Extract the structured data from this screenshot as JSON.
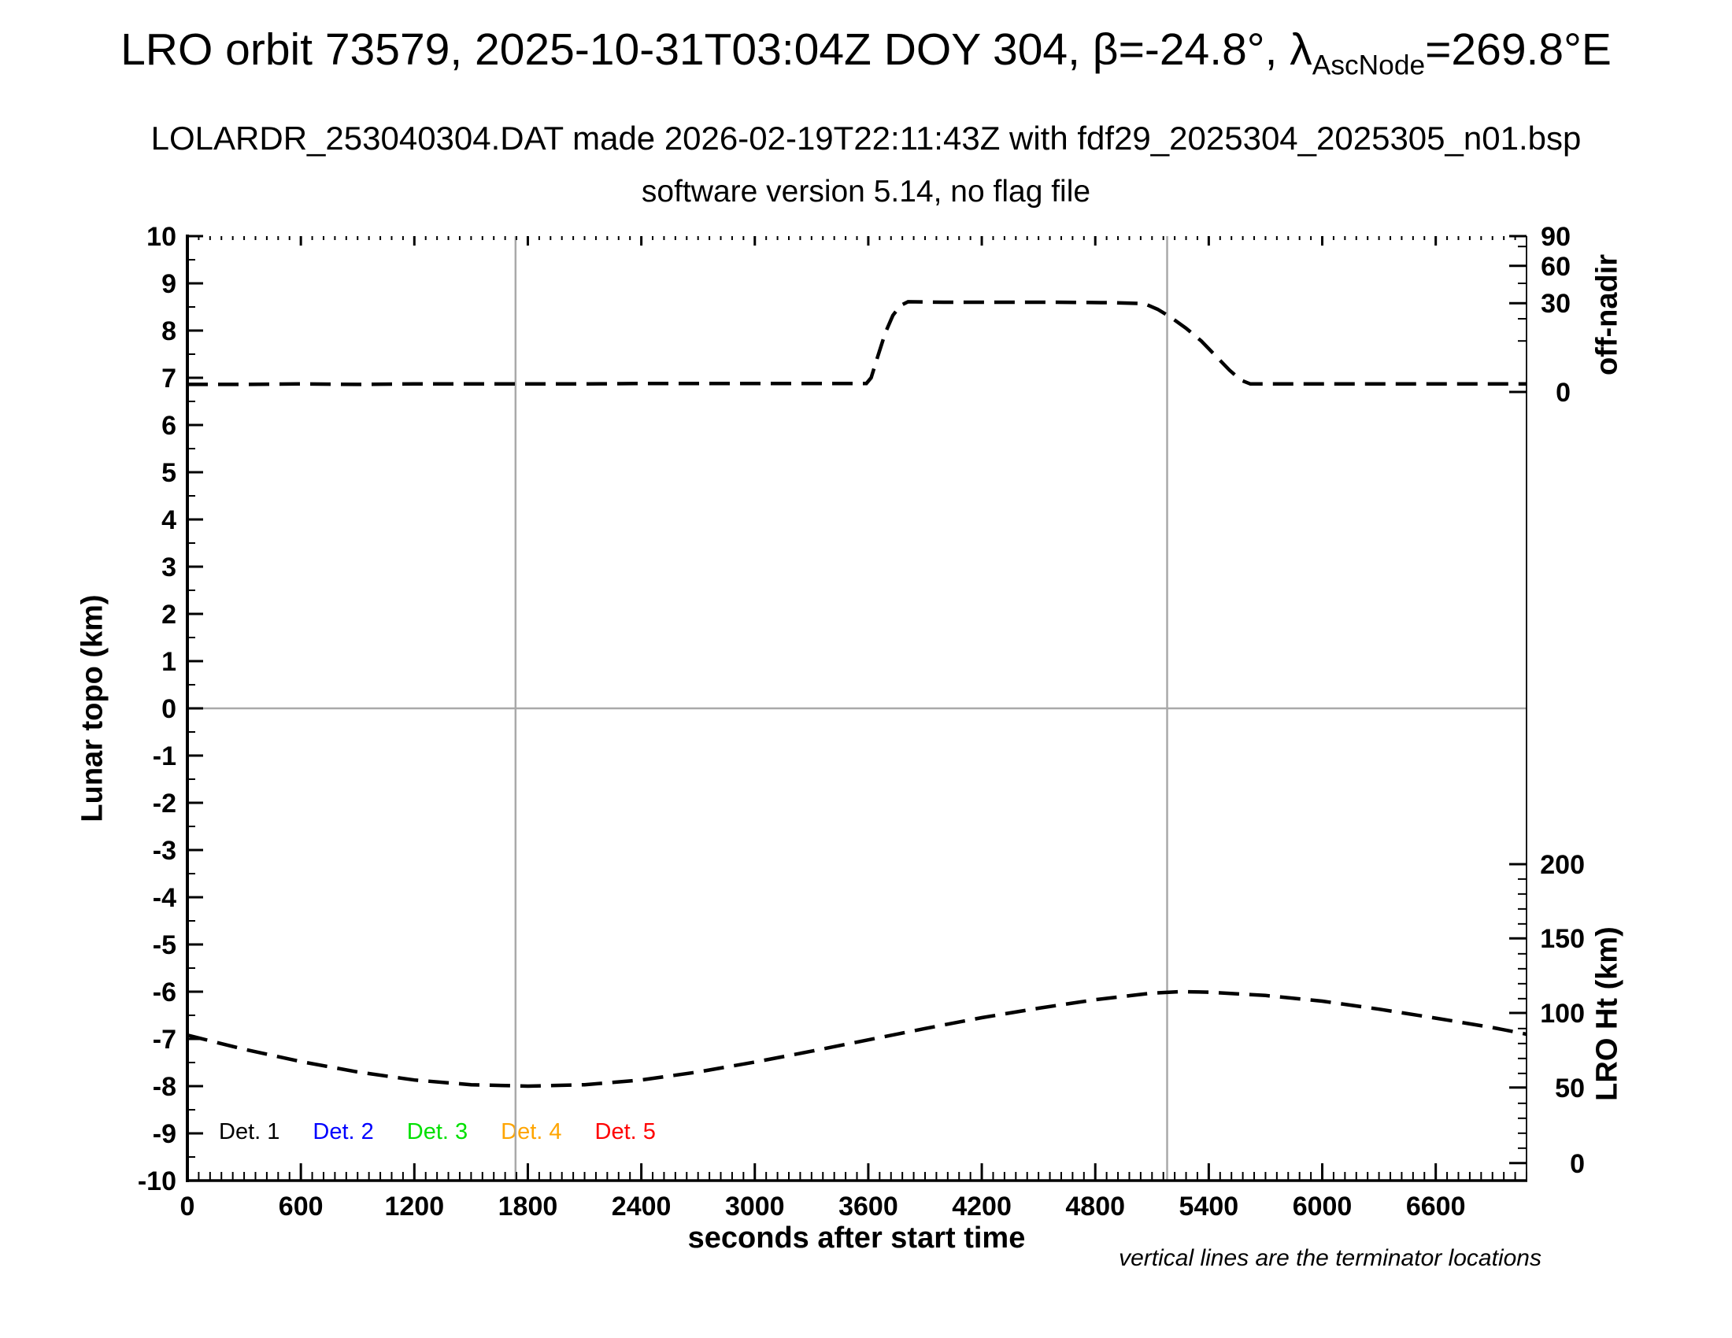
{
  "header": {
    "title_main": "LRO orbit 73579, 2025-10-31T03:04Z DOY 304, β=-24.8°, λ",
    "title_subscript": "AscNode",
    "title_suffix": "=269.8°E",
    "subtitle1": "LOLARDR_253040304.DAT made 2026-02-19T22:11:43Z with fdf29_2025304_2025305_n01.bsp",
    "subtitle2": "software version 5.14, no flag file"
  },
  "chart_data": {
    "type": "line",
    "title": "LRO orbit 73579, 2025-10-31T03:04Z DOY 304, β=-24.8°, λ_AscNode=269.8°E",
    "x_axis": {
      "label": "seconds after start time",
      "range": [
        0,
        7080
      ],
      "major_tick_step": 600,
      "minor_tick_step": 60,
      "tick_labels": [
        0,
        600,
        1200,
        1800,
        2400,
        3000,
        3600,
        4200,
        4800,
        5400,
        6000,
        6600
      ]
    },
    "y_axis_left": {
      "label": "Lunar topo (km)",
      "range": [
        -10,
        10
      ],
      "major_tick_step": 1,
      "minor_tick_step": 0.5,
      "tick_labels": [
        10,
        9,
        8,
        7,
        6,
        5,
        4,
        3,
        2,
        1,
        0,
        -1,
        -2,
        -3,
        -4,
        -5,
        -6,
        -7,
        -8,
        -9,
        -10
      ]
    },
    "y_axis_right_offnadir": {
      "label": "off-nadir",
      "ticks": [
        {
          "label": "90",
          "topo_pos": 10.0
        },
        {
          "label": "60",
          "topo_pos": 9.37
        },
        {
          "label": "30",
          "topo_pos": 8.58
        },
        {
          "label": "0",
          "topo_pos": 6.7
        }
      ],
      "minor_topo_pos": [
        9.78,
        9.0,
        8.25,
        7.78
      ]
    },
    "y_axis_right_lro_ht": {
      "label": "LRO Ht (km)",
      "ticks": [
        {
          "label": "200",
          "topo_pos": -3.3
        },
        {
          "label": "150",
          "topo_pos": -4.87
        },
        {
          "label": "100",
          "topo_pos": -6.45
        },
        {
          "label": "50",
          "topo_pos": -8.03
        },
        {
          "label": "0",
          "topo_pos": -9.63
        }
      ],
      "minor_km_step": 10,
      "km_range": [
        0,
        200
      ],
      "topo_per_km": 0.03166
    },
    "grid": {
      "h_line_at_topo": 0,
      "v_lines_at_seconds": [
        1735,
        5180
      ]
    },
    "footnote": "vertical lines are the terminator locations",
    "legend": [
      {
        "label": "Det. 1",
        "color": "#000000"
      },
      {
        "label": "Det. 2",
        "color": "#0000ff"
      },
      {
        "label": "Det. 3",
        "color": "#00e000"
      },
      {
        "label": "Det. 4",
        "color": "#ffa500"
      },
      {
        "label": "Det. 5",
        "color": "#ff0000"
      }
    ],
    "series": [
      {
        "name": "off-nadir angle (all detectors overlaid)",
        "color": "#000000",
        "style": "dashed",
        "y_units": "plotted against left axis; off-nadir 0° ≈ 6.7, 30° ≈ 8.58 on topo scale",
        "note": "baseline ≈2° off-nadir; slew to ≈30° between t≈3600 s and t≈5620 s",
        "points": [
          [
            0,
            6.86
          ],
          [
            300,
            6.86
          ],
          [
            600,
            6.87
          ],
          [
            900,
            6.86
          ],
          [
            1200,
            6.87
          ],
          [
            1500,
            6.87
          ],
          [
            1800,
            6.87
          ],
          [
            2100,
            6.87
          ],
          [
            2400,
            6.88
          ],
          [
            2700,
            6.88
          ],
          [
            3000,
            6.88
          ],
          [
            3300,
            6.88
          ],
          [
            3590,
            6.88
          ],
          [
            3615,
            7.0
          ],
          [
            3650,
            7.45
          ],
          [
            3690,
            7.95
          ],
          [
            3730,
            8.32
          ],
          [
            3770,
            8.53
          ],
          [
            3810,
            8.61
          ],
          [
            4000,
            8.6
          ],
          [
            4300,
            8.6
          ],
          [
            4600,
            8.6
          ],
          [
            4900,
            8.59
          ],
          [
            5060,
            8.57
          ],
          [
            5130,
            8.45
          ],
          [
            5200,
            8.28
          ],
          [
            5280,
            8.05
          ],
          [
            5360,
            7.78
          ],
          [
            5440,
            7.45
          ],
          [
            5510,
            7.16
          ],
          [
            5570,
            6.95
          ],
          [
            5620,
            6.87
          ],
          [
            5900,
            6.87
          ],
          [
            6200,
            6.87
          ],
          [
            6500,
            6.87
          ],
          [
            6800,
            6.87
          ],
          [
            7080,
            6.87
          ]
        ]
      },
      {
        "name": "LRO height",
        "color": "#000000",
        "style": "dashed",
        "y_units": "plotted against left axis; LRO Ht 0 km ≈ -9.63, 50 km ≈ -8.03 on topo scale",
        "note": "≈85 km at t=0, min ≈51 km at t≈1800 s, max ≈115 km at t≈5200 s, ≈86 km at end",
        "points": [
          [
            0,
            -6.92
          ],
          [
            300,
            -7.22
          ],
          [
            600,
            -7.48
          ],
          [
            900,
            -7.7
          ],
          [
            1200,
            -7.87
          ],
          [
            1500,
            -7.97
          ],
          [
            1800,
            -8.0
          ],
          [
            2100,
            -7.97
          ],
          [
            2400,
            -7.87
          ],
          [
            2700,
            -7.7
          ],
          [
            3000,
            -7.49
          ],
          [
            3300,
            -7.26
          ],
          [
            3600,
            -7.02
          ],
          [
            3900,
            -6.78
          ],
          [
            4200,
            -6.55
          ],
          [
            4500,
            -6.35
          ],
          [
            4800,
            -6.17
          ],
          [
            5100,
            -6.03
          ],
          [
            5250,
            -6.0
          ],
          [
            5400,
            -6.01
          ],
          [
            5700,
            -6.08
          ],
          [
            6000,
            -6.2
          ],
          [
            6300,
            -6.37
          ],
          [
            6600,
            -6.56
          ],
          [
            6900,
            -6.76
          ],
          [
            7080,
            -6.9
          ]
        ]
      }
    ]
  }
}
